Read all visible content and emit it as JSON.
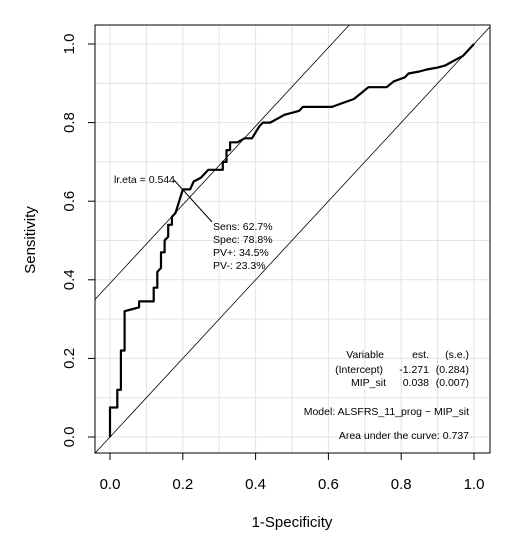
{
  "chart_data": {
    "type": "line",
    "xlabel": "1-Specificity",
    "ylabel": "Sensitivity",
    "xlim": [
      0,
      1
    ],
    "ylim": [
      0,
      1
    ],
    "x_ticks": [
      "0.0",
      "0.2",
      "0.4",
      "0.6",
      "0.8",
      "1.0"
    ],
    "y_ticks": [
      "0.0",
      "0.2",
      "0.4",
      "0.6",
      "0.8",
      "1.0"
    ],
    "grid": true,
    "series": [
      {
        "values": [
          [
            0.0,
            0.0
          ],
          [
            0.0,
            0.075
          ],
          [
            0.02,
            0.075
          ],
          [
            0.02,
            0.12
          ],
          [
            0.03,
            0.12
          ],
          [
            0.03,
            0.22
          ],
          [
            0.04,
            0.22
          ],
          [
            0.04,
            0.32
          ],
          [
            0.08,
            0.33
          ],
          [
            0.08,
            0.345
          ],
          [
            0.12,
            0.345
          ],
          [
            0.12,
            0.38
          ],
          [
            0.13,
            0.38
          ],
          [
            0.13,
            0.42
          ],
          [
            0.14,
            0.43
          ],
          [
            0.14,
            0.47
          ],
          [
            0.15,
            0.47
          ],
          [
            0.15,
            0.5
          ],
          [
            0.16,
            0.51
          ],
          [
            0.16,
            0.54
          ],
          [
            0.17,
            0.54
          ],
          [
            0.17,
            0.56
          ],
          [
            0.18,
            0.57
          ],
          [
            0.19,
            0.6
          ],
          [
            0.2,
            0.63
          ],
          [
            0.22,
            0.63
          ],
          [
            0.23,
            0.65
          ],
          [
            0.25,
            0.66
          ],
          [
            0.27,
            0.68
          ],
          [
            0.31,
            0.68
          ],
          [
            0.31,
            0.7
          ],
          [
            0.32,
            0.7
          ],
          [
            0.32,
            0.73
          ],
          [
            0.33,
            0.73
          ],
          [
            0.33,
            0.75
          ],
          [
            0.35,
            0.75
          ],
          [
            0.37,
            0.76
          ],
          [
            0.39,
            0.76
          ],
          [
            0.41,
            0.79
          ],
          [
            0.42,
            0.8
          ],
          [
            0.44,
            0.8
          ],
          [
            0.46,
            0.81
          ],
          [
            0.48,
            0.82
          ],
          [
            0.5,
            0.825
          ],
          [
            0.52,
            0.83
          ],
          [
            0.53,
            0.84
          ],
          [
            0.61,
            0.84
          ],
          [
            0.64,
            0.85
          ],
          [
            0.67,
            0.86
          ],
          [
            0.69,
            0.875
          ],
          [
            0.71,
            0.89
          ],
          [
            0.76,
            0.89
          ],
          [
            0.78,
            0.905
          ],
          [
            0.81,
            0.915
          ],
          [
            0.82,
            0.925
          ],
          [
            0.85,
            0.93
          ],
          [
            0.87,
            0.935
          ],
          [
            0.9,
            0.94
          ],
          [
            0.92,
            0.945
          ],
          [
            0.95,
            0.96
          ],
          [
            0.97,
            0.97
          ],
          [
            0.98,
            0.98
          ],
          [
            0.99,
            0.99
          ],
          [
            1.0,
            1.0
          ]
        ]
      }
    ],
    "reference_lines": [
      {
        "slope": 1,
        "intercept": 0
      },
      {
        "slope": 1,
        "intercept": 0.391
      }
    ],
    "cutoff_point": {
      "x": 0.212,
      "y": 0.627
    },
    "annotations": {
      "cutoff_label": "lr.eta = 0.544",
      "stats": [
        "Sens: 62.7%",
        "Spec: 78.8%",
        "PV+: 34.5%",
        "PV-: 23.3%"
      ],
      "table_header": [
        "Variable",
        "est.",
        "(s.e.)"
      ],
      "table_rows": [
        [
          "(Intercept)",
          "-1.271",
          "(0.284)"
        ],
        [
          "MIP_sit",
          "0.038",
          "(0.007)"
        ]
      ],
      "model": "Model:  ALSFRS_11_prog ~ MIP_sit",
      "auc": "Area under the curve: 0.737"
    },
    "colors": {
      "curve": "#000000",
      "reference": "#000000",
      "grid": "#e3e3e3"
    }
  }
}
